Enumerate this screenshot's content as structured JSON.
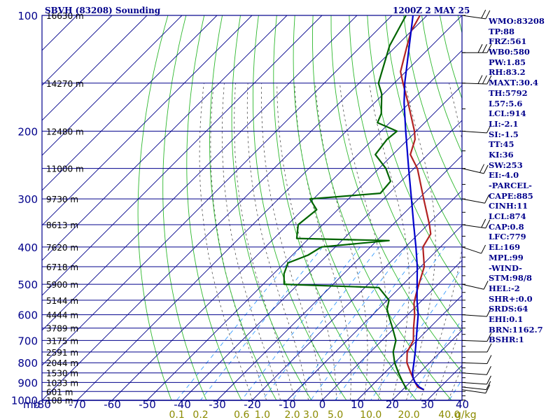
{
  "header": {
    "station": "SBVH (83208) Sounding",
    "time": "1200Z  2 MAY 25"
  },
  "indices": [
    "WMO:83208",
    "TP:88",
    "FRZ:561",
    "WB0:580",
    "PW:1.85",
    "RH:83.2",
    "MAXT:30.4",
    "TH:5792",
    "L57:5.6",
    "LCL:914",
    "LI:-2.1",
    "SI:-1.5",
    "TT:45",
    "KI:36",
    "SW:253",
    "EI:-4.0",
    "-PARCEL-",
    "CAPE:885",
    "CINH:11",
    "LCL:874",
    "CAP:0.8",
    "LFC:779",
    "EL:169",
    "MPL:99",
    "-WIND-",
    "STM:98/8",
    "HEL:-2",
    "SHR+:0.0",
    "SRDS:64",
    "EHI:0.1",
    "BRN:1162.7",
    "BSHR:1"
  ],
  "colors": {
    "grid": "#00008b",
    "dry_adiabat": "#2eb82e",
    "moist_adiabat": "#000000",
    "mixing_ratio": "#1e90ff",
    "temperature": "#b22222",
    "dewpoint": "#006400",
    "parcel": "#0000cd",
    "mixing_label": "#8b8b00"
  },
  "chart_data": {
    "type": "line",
    "title": "SBVH (83208) Sounding",
    "subtitle": "1200Z  2 MAY 25",
    "y_axis_unit": "mb",
    "x_axis_unit": "°C",
    "pressure_ticks": [
      100,
      200,
      300,
      400,
      500,
      600,
      700,
      800,
      900,
      1000
    ],
    "pressure_tick_labels": [
      "100",
      "200",
      "300",
      "400",
      "500",
      "600",
      "700",
      "800",
      "900",
      "1000"
    ],
    "temperature_ticks": [
      -80,
      -70,
      -60,
      -50,
      -40,
      -30,
      -20,
      -10,
      0,
      10,
      20,
      30,
      40
    ],
    "temperature_tick_labels": [
      "-80",
      "-70",
      "-60",
      "-50",
      "-40",
      "-30",
      "-20",
      "-10",
      "0",
      "10",
      "20",
      "30",
      "40"
    ],
    "height_labels": [
      {
        "p": 100,
        "label": "16630 m"
      },
      {
        "p": 150,
        "label": "14270 m"
      },
      {
        "p": 200,
        "label": "12480 m"
      },
      {
        "p": 250,
        "label": "11000 m"
      },
      {
        "p": 300,
        "label": "9730 m"
      },
      {
        "p": 350,
        "label": "8613 m"
      },
      {
        "p": 400,
        "label": "7620 m"
      },
      {
        "p": 450,
        "label": "6718 m"
      },
      {
        "p": 500,
        "label": "5900 m"
      },
      {
        "p": 550,
        "label": "5144 m"
      },
      {
        "p": 600,
        "label": "4444 m"
      },
      {
        "p": 650,
        "label": "3789 m"
      },
      {
        "p": 700,
        "label": "3175 m"
      },
      {
        "p": 750,
        "label": "2591 m"
      },
      {
        "p": 800,
        "label": "2044 m"
      },
      {
        "p": 850,
        "label": "1530 m"
      },
      {
        "p": 900,
        "label": "1033 m"
      },
      {
        "p": 950,
        "label": "601 m"
      },
      {
        "p": 1000,
        "label": "108 m"
      }
    ],
    "mixing_ratio_labels": [
      "0.1",
      "0.2",
      "0.6",
      "1.0",
      "2.0",
      "3.0",
      "5.0",
      "10.0",
      "20.0",
      "40.0"
    ],
    "mixing_ratio_values": [
      0.1,
      0.2,
      0.6,
      1.0,
      2.0,
      3.0,
      5.0,
      10.0,
      20.0,
      40.0
    ],
    "mixing_ratio_unit": "g/kg",
    "series": [
      {
        "key": "temperature",
        "values": [
          {
            "p": 940,
            "t": 26.0
          },
          {
            "p": 925,
            "t": 23.5
          },
          {
            "p": 900,
            "t": 21.5
          },
          {
            "p": 850,
            "t": 17.5
          },
          {
            "p": 800,
            "t": 13.5
          },
          {
            "p": 750,
            "t": 10.5
          },
          {
            "p": 700,
            "t": 9.0
          },
          {
            "p": 650,
            "t": 5.5
          },
          {
            "p": 600,
            "t": 2.0
          },
          {
            "p": 560,
            "t": -1.5
          },
          {
            "p": 530,
            "t": -3.5
          },
          {
            "p": 500,
            "t": -5.5
          },
          {
            "p": 450,
            "t": -9.0
          },
          {
            "p": 400,
            "t": -15.0
          },
          {
            "p": 370,
            "t": -16.5
          },
          {
            "p": 350,
            "t": -19.5
          },
          {
            "p": 300,
            "t": -28.5
          },
          {
            "p": 250,
            "t": -39.0
          },
          {
            "p": 230,
            "t": -45.0
          },
          {
            "p": 210,
            "t": -48.0
          },
          {
            "p": 200,
            "t": -50.5
          },
          {
            "p": 170,
            "t": -60.0
          },
          {
            "p": 150,
            "t": -67.5
          },
          {
            "p": 140,
            "t": -71.5
          },
          {
            "p": 120,
            "t": -77.0
          },
          {
            "p": 110,
            "t": -80.0
          },
          {
            "p": 100,
            "t": -82.0
          }
        ]
      },
      {
        "key": "dewpoint",
        "values": [
          {
            "p": 940,
            "t": 21.0
          },
          {
            "p": 925,
            "t": 20.0
          },
          {
            "p": 900,
            "t": 18.0
          },
          {
            "p": 850,
            "t": 14.0
          },
          {
            "p": 800,
            "t": 10.0
          },
          {
            "p": 750,
            "t": 6.5
          },
          {
            "p": 700,
            "t": 4.0
          },
          {
            "p": 650,
            "t": -0.5
          },
          {
            "p": 600,
            "t": -5.5
          },
          {
            "p": 580,
            "t": -7.5
          },
          {
            "p": 550,
            "t": -9.5
          },
          {
            "p": 510,
            "t": -16.0
          },
          {
            "p": 500,
            "t": -44.0
          },
          {
            "p": 470,
            "t": -47.0
          },
          {
            "p": 440,
            "t": -49.0
          },
          {
            "p": 420,
            "t": -45.5
          },
          {
            "p": 400,
            "t": -44.0
          },
          {
            "p": 385,
            "t": -26.5
          },
          {
            "p": 380,
            "t": -53.5
          },
          {
            "p": 350,
            "t": -57.0
          },
          {
            "p": 320,
            "t": -56.0
          },
          {
            "p": 300,
            "t": -61.0
          },
          {
            "p": 290,
            "t": -42.5
          },
          {
            "p": 270,
            "t": -43.0
          },
          {
            "p": 250,
            "t": -48.0
          },
          {
            "p": 230,
            "t": -55.0
          },
          {
            "p": 210,
            "t": -56.0
          },
          {
            "p": 200,
            "t": -55.5
          },
          {
            "p": 190,
            "t": -63.5
          },
          {
            "p": 180,
            "t": -65.0
          },
          {
            "p": 160,
            "t": -70.5
          },
          {
            "p": 150,
            "t": -74.5
          },
          {
            "p": 120,
            "t": -82.0
          },
          {
            "p": 100,
            "t": -86.0
          }
        ]
      },
      {
        "key": "parcel",
        "values": [
          {
            "p": 940,
            "t": 26.0
          },
          {
            "p": 925,
            "t": 24.0
          },
          {
            "p": 900,
            "t": 21.5
          },
          {
            "p": 874,
            "t": 19.5
          },
          {
            "p": 850,
            "t": 18.0
          },
          {
            "p": 800,
            "t": 15.5
          },
          {
            "p": 750,
            "t": 12.8
          },
          {
            "p": 700,
            "t": 9.8
          },
          {
            "p": 650,
            "t": 6.5
          },
          {
            "p": 600,
            "t": 3.0
          },
          {
            "p": 550,
            "t": -1.5
          },
          {
            "p": 500,
            "t": -6.0
          },
          {
            "p": 450,
            "t": -11.0
          },
          {
            "p": 400,
            "t": -17.0
          },
          {
            "p": 350,
            "t": -24.0
          },
          {
            "p": 300,
            "t": -32.0
          },
          {
            "p": 250,
            "t": -41.5
          },
          {
            "p": 200,
            "t": -53.0
          },
          {
            "p": 169,
            "t": -61.5
          },
          {
            "p": 150,
            "t": -67.0
          },
          {
            "p": 100,
            "t": -84.0
          }
        ]
      }
    ],
    "wind_barbs": [
      {
        "p": 940,
        "dir": 110,
        "spd": 10
      },
      {
        "p": 925,
        "dir": 105,
        "spd": 10
      },
      {
        "p": 900,
        "dir": 100,
        "spd": 10
      },
      {
        "p": 850,
        "dir": 100,
        "spd": 10
      },
      {
        "p": 800,
        "dir": 95,
        "spd": 10
      },
      {
        "p": 750,
        "dir": 90,
        "spd": 10
      },
      {
        "p": 700,
        "dir": 95,
        "spd": 10
      },
      {
        "p": 600,
        "dir": 100,
        "spd": 10
      },
      {
        "p": 500,
        "dir": 120,
        "spd": 10
      },
      {
        "p": 400,
        "dir": 230,
        "spd": 10
      },
      {
        "p": 350,
        "dir": 250,
        "spd": 15
      },
      {
        "p": 300,
        "dir": 245,
        "spd": 10
      },
      {
        "p": 250,
        "dir": 240,
        "spd": 15
      },
      {
        "p": 200,
        "dir": 260,
        "spd": 10
      },
      {
        "p": 150,
        "dir": 265,
        "spd": 25
      },
      {
        "p": 125,
        "dir": 270,
        "spd": 30
      },
      {
        "p": 100,
        "dir": 250,
        "spd": 20
      }
    ]
  }
}
